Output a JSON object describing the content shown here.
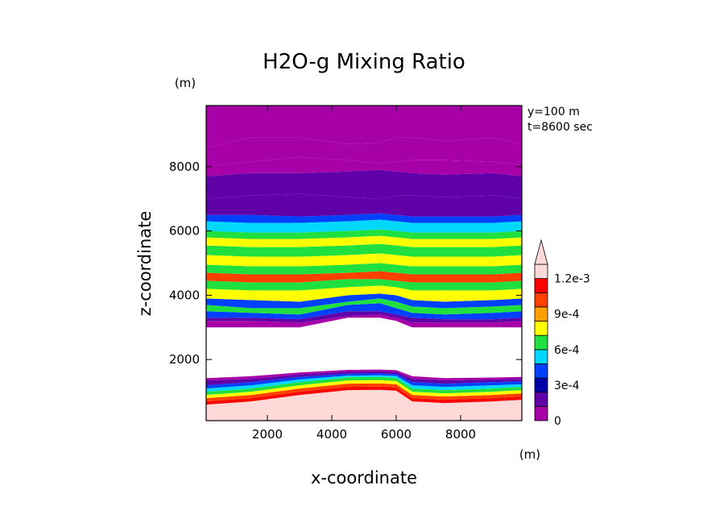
{
  "chart_data": {
    "type": "heatmap",
    "title": "H2O-g Mixing Ratio",
    "xlabel": "x-coordinate",
    "ylabel": "z-coordinate",
    "x_unit": "(m)",
    "y_unit": "(m)",
    "annotations": [
      "y=100 m",
      "t=8600 sec"
    ],
    "xlim": [
      100,
      9900
    ],
    "ylim": [
      100,
      9900
    ],
    "x_ticks": [
      2000,
      4000,
      6000,
      8000
    ],
    "y_ticks": [
      2000,
      4000,
      6000,
      8000
    ],
    "legend_placement": "right",
    "colorbar": {
      "levels": [
        0,
        0.00015,
        0.0003,
        0.00045,
        0.0006,
        0.00075,
        0.0009,
        0.00105,
        0.0012
      ],
      "tick_labels": [
        "0",
        "3e-4",
        "6e-4",
        "9e-4",
        "1.2e-3"
      ],
      "tick_values": [
        0,
        0.0003,
        0.0006,
        0.0009,
        0.0012
      ],
      "extend": "max",
      "colors": [
        "#a800a8",
        "#6000a8",
        "#0000a8",
        "#0040ff",
        "#00d8ff",
        "#20e040",
        "#ffff00",
        "#ffa000",
        "#ff4000",
        "#ff0000",
        "#ffd8d8"
      ]
    },
    "x_nodes": [
      100,
      1500,
      3000,
      4500,
      5500,
      6000,
      6500,
      7500,
      9000,
      9900
    ],
    "bands": [
      {
        "value": 0.0014,
        "z_bottom": [
          100,
          100,
          100,
          100,
          100,
          100,
          100,
          100,
          100,
          100
        ],
        "z_top": [
          600,
          700,
          900,
          1050,
          1060,
          1030,
          700,
          650,
          700,
          750
        ]
      },
      {
        "value": 0.00112,
        "z_bottom": [
          600,
          700,
          900,
          1050,
          1060,
          1030,
          700,
          650,
          700,
          750
        ],
        "z_top": [
          700,
          800,
          1000,
          1150,
          1160,
          1130,
          800,
          750,
          800,
          850
        ]
      },
      {
        "value": 0.00098,
        "z_bottom": [
          700,
          800,
          1000,
          1150,
          1160,
          1130,
          800,
          750,
          800,
          850
        ],
        "z_top": [
          800,
          900,
          1100,
          1250,
          1260,
          1230,
          900,
          850,
          900,
          950
        ]
      },
      {
        "value": 0.00082,
        "z_bottom": [
          800,
          900,
          1100,
          1250,
          1260,
          1230,
          900,
          850,
          900,
          950
        ],
        "z_top": [
          900,
          1000,
          1200,
          1350,
          1360,
          1330,
          1000,
          950,
          1000,
          1050
        ]
      },
      {
        "value": 0.00068,
        "z_bottom": [
          900,
          1000,
          1200,
          1350,
          1360,
          1330,
          1000,
          950,
          1000,
          1050
        ],
        "z_top": [
          1000,
          1100,
          1300,
          1450,
          1460,
          1430,
          1100,
          1050,
          1100,
          1150
        ]
      },
      {
        "value": 0.00052,
        "z_bottom": [
          1000,
          1100,
          1300,
          1450,
          1460,
          1430,
          1100,
          1050,
          1100,
          1150
        ],
        "z_top": [
          1100,
          1200,
          1380,
          1500,
          1510,
          1490,
          1200,
          1150,
          1200,
          1230
        ]
      },
      {
        "value": 0.00038,
        "z_bottom": [
          1100,
          1200,
          1380,
          1500,
          1510,
          1490,
          1200,
          1150,
          1200,
          1230
        ],
        "z_top": [
          1200,
          1300,
          1460,
          1560,
          1570,
          1550,
          1300,
          1250,
          1300,
          1320
        ]
      },
      {
        "value": 0.00022,
        "z_bottom": [
          1200,
          1300,
          1460,
          1560,
          1570,
          1550,
          1300,
          1250,
          1300,
          1320
        ],
        "z_top": [
          1350,
          1400,
          1540,
          1630,
          1640,
          1620,
          1400,
          1350,
          1380,
          1400
        ]
      },
      {
        "value": 8e-05,
        "z_bottom": [
          1350,
          1400,
          1540,
          1630,
          1640,
          1620,
          1400,
          1350,
          1380,
          1400
        ],
        "z_top": [
          1420,
          1480,
          1600,
          1680,
          1690,
          1670,
          1480,
          1420,
          1440,
          1460
        ]
      },
      {
        "value": 8e-05,
        "z_bottom": [
          3000,
          3000,
          3000,
          3300,
          3300,
          3200,
          3000,
          3000,
          3000,
          3000
        ],
        "z_top": [
          3200,
          3200,
          3150,
          3350,
          3400,
          3300,
          3150,
          3150,
          3150,
          3200
        ]
      },
      {
        "value": 0.00022,
        "z_bottom": [
          3200,
          3200,
          3150,
          3350,
          3400,
          3300,
          3150,
          3150,
          3150,
          3200
        ],
        "z_top": [
          3300,
          3300,
          3250,
          3500,
          3500,
          3400,
          3300,
          3250,
          3250,
          3300
        ]
      },
      {
        "value": 0.00038,
        "z_bottom": [
          3300,
          3300,
          3250,
          3500,
          3500,
          3400,
          3300,
          3250,
          3250,
          3300
        ],
        "z_top": [
          3500,
          3450,
          3400,
          3700,
          3750,
          3600,
          3450,
          3400,
          3450,
          3500
        ]
      },
      {
        "value": 0.00068,
        "z_bottom": [
          3500,
          3450,
          3400,
          3700,
          3750,
          3600,
          3450,
          3400,
          3450,
          3500
        ],
        "z_top": [
          3700,
          3600,
          3600,
          3800,
          3900,
          3800,
          3650,
          3600,
          3650,
          3700
        ]
      },
      {
        "value": 0.00038,
        "z_bottom": [
          3700,
          3600,
          3600,
          3800,
          3900,
          3800,
          3650,
          3600,
          3650,
          3700
        ],
        "z_top": [
          3900,
          3850,
          3800,
          4000,
          4050,
          4000,
          3850,
          3800,
          3850,
          3900
        ]
      },
      {
        "value": 0.00082,
        "z_bottom": [
          3900,
          3850,
          3800,
          4000,
          4050,
          4000,
          3850,
          3800,
          3850,
          3900
        ],
        "z_top": [
          4200,
          4150,
          4150,
          4250,
          4300,
          4250,
          4150,
          4150,
          4150,
          4200
        ]
      },
      {
        "value": 0.00068,
        "z_bottom": [
          4200,
          4150,
          4150,
          4250,
          4300,
          4250,
          4150,
          4150,
          4150,
          4200
        ],
        "z_top": [
          4450,
          4400,
          4400,
          4500,
          4500,
          4450,
          4400,
          4400,
          4400,
          4450
        ]
      },
      {
        "value": 0.00098,
        "z_bottom": [
          4450,
          4400,
          4400,
          4500,
          4500,
          4450,
          4400,
          4400,
          4400,
          4450
        ],
        "z_top": [
          4700,
          4650,
          4650,
          4700,
          4750,
          4700,
          4650,
          4650,
          4650,
          4700
        ]
      },
      {
        "value": 0.00068,
        "z_bottom": [
          4700,
          4650,
          4650,
          4700,
          4750,
          4700,
          4650,
          4650,
          4650,
          4700
        ],
        "z_top": [
          4950,
          4900,
          4900,
          4950,
          5000,
          4950,
          4900,
          4900,
          4900,
          4950
        ]
      },
      {
        "value": 0.00082,
        "z_bottom": [
          4950,
          4900,
          4900,
          4950,
          5000,
          4950,
          4900,
          4900,
          4900,
          4950
        ],
        "z_top": [
          5250,
          5200,
          5200,
          5250,
          5300,
          5250,
          5200,
          5200,
          5200,
          5250
        ]
      },
      {
        "value": 0.00068,
        "z_bottom": [
          5250,
          5200,
          5200,
          5250,
          5300,
          5250,
          5200,
          5200,
          5200,
          5250
        ],
        "z_top": [
          5550,
          5500,
          5500,
          5550,
          5600,
          5550,
          5500,
          5500,
          5500,
          5550
        ]
      },
      {
        "value": 0.00082,
        "z_bottom": [
          5550,
          5500,
          5500,
          5550,
          5600,
          5550,
          5500,
          5500,
          5500,
          5550
        ],
        "z_top": [
          5800,
          5750,
          5750,
          5800,
          5850,
          5800,
          5750,
          5750,
          5750,
          5800
        ]
      },
      {
        "value": 0.00068,
        "z_bottom": [
          5800,
          5750,
          5750,
          5800,
          5850,
          5800,
          5750,
          5750,
          5750,
          5800
        ],
        "z_top": [
          6000,
          5950,
          5950,
          6000,
          6050,
          6000,
          5950,
          5950,
          5950,
          6000
        ]
      },
      {
        "value": 0.00052,
        "z_bottom": [
          6000,
          5950,
          5950,
          6000,
          6050,
          6000,
          5950,
          5950,
          5950,
          6000
        ],
        "z_top": [
          6300,
          6250,
          6250,
          6300,
          6350,
          6300,
          6250,
          6250,
          6250,
          6300
        ]
      },
      {
        "value": 0.00038,
        "z_bottom": [
          6300,
          6250,
          6250,
          6300,
          6350,
          6300,
          6250,
          6250,
          6250,
          6300
        ],
        "z_top": [
          6500,
          6500,
          6450,
          6500,
          6550,
          6500,
          6450,
          6450,
          6450,
          6500
        ]
      },
      {
        "value": 0.00022,
        "z_bottom": [
          6500,
          6500,
          6450,
          6500,
          6550,
          6500,
          6450,
          6450,
          6450,
          6500
        ],
        "z_top": [
          7000,
          7100,
          7150,
          7050,
          7000,
          7100,
          7100,
          7050,
          7100,
          7000
        ]
      },
      {
        "value": 0.00022,
        "z_bottom": [
          7000,
          7100,
          7150,
          7050,
          7000,
          7100,
          7100,
          7050,
          7100,
          7000
        ],
        "z_top": [
          7700,
          7800,
          7800,
          7850,
          7900,
          7850,
          7800,
          7750,
          7800,
          7700
        ]
      },
      {
        "value": 0.00012,
        "z_bottom": [
          7700,
          7800,
          7800,
          7850,
          7900,
          7850,
          7800,
          7750,
          7800,
          7700
        ],
        "z_top": [
          8000,
          8150,
          8300,
          8200,
          8100,
          8150,
          8200,
          8200,
          8150,
          8050
        ]
      },
      {
        "value": 8e-05,
        "z_bottom": [
          8000,
          8150,
          8300,
          8200,
          8100,
          8150,
          8200,
          8200,
          8150,
          8050
        ],
        "z_top": [
          8600,
          8900,
          8900,
          8700,
          8750,
          8900,
          8900,
          8800,
          8900,
          8700
        ]
      },
      {
        "value": 2e-05,
        "z_bottom": [
          8600,
          8900,
          8900,
          8700,
          8750,
          8900,
          8900,
          8800,
          8900,
          8700
        ],
        "z_top": [
          9900,
          9900,
          9900,
          9900,
          9900,
          9900,
          9900,
          9900,
          9900,
          9900
        ]
      }
    ]
  }
}
